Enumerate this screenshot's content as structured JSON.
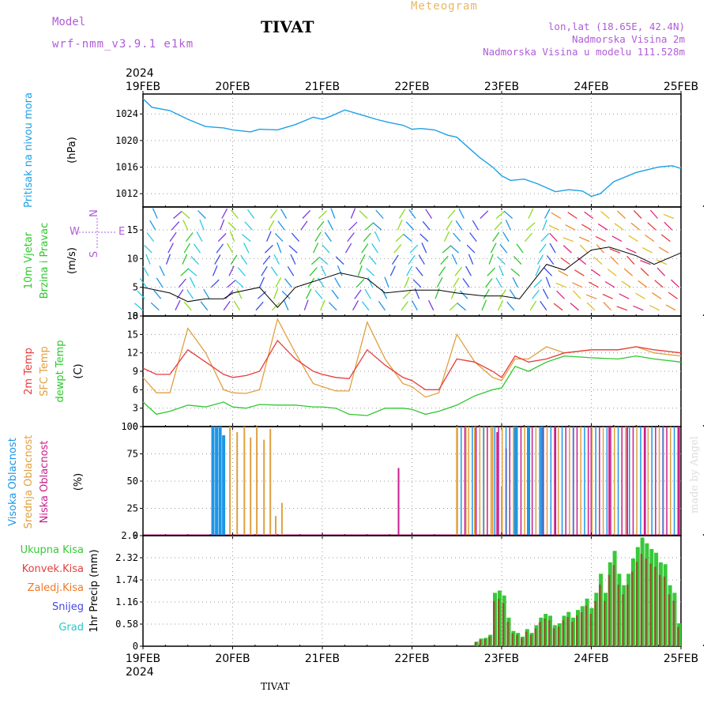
{
  "header": {
    "model_label": "Model",
    "model_version": "wrf-nmm_v3.9.1  e1km",
    "station": "TIVAT",
    "meteogram": "Meteogram",
    "lonlat": "lon,lat (18.65E, 42.4N)",
    "elevation": "Nadmorska Visina 2m",
    "model_elevation": "Nadmorska Visina u modelu 111.528m"
  },
  "footer": {
    "station": "TIVAT",
    "watermark": "made by Angel"
  },
  "colors": {
    "pressure": "#1ea0e6",
    "t2m": "#e83c3c",
    "sfc": "#e0a040",
    "dew": "#2ec82e",
    "high_cloud": "#1e96e6",
    "mid_cloud": "#e0a040",
    "low_cloud": "#c81e8c",
    "total_rain": "#38c838",
    "conv_rain": "#e04040",
    "frozen_rain": "#f07828",
    "snow": "#4646e6",
    "hail": "#28c8c8",
    "wind_axis_label": "#b05cd8"
  },
  "time_axis": {
    "year_top": "2024",
    "year_bottom": "2024",
    "dates": [
      "19FEB",
      "20FEB",
      "21FEB",
      "22FEB",
      "23FEB",
      "24FEB",
      "25FEB"
    ]
  },
  "chart_data": [
    {
      "type": "line",
      "name": "pressure",
      "ylabel_main": "Pritisak na nivou mora",
      "ylabel_unit": "(hPa)",
      "yticks": [
        "1012",
        "1016",
        "1020",
        "1024"
      ],
      "ylim": [
        1010,
        1027
      ],
      "x_days": [
        0,
        0.1,
        0.3,
        0.5,
        0.7,
        0.9,
        1.0,
        1.2,
        1.3,
        1.5,
        1.7,
        1.9,
        2.0,
        2.1,
        2.25,
        2.4,
        2.5,
        2.6,
        2.75,
        2.9,
        3.0,
        3.1,
        3.25,
        3.4,
        3.5,
        3.75,
        3.9,
        4.0,
        4.1,
        4.25,
        4.4,
        4.6,
        4.75,
        4.9,
        5.0,
        5.1,
        5.25,
        5.5,
        5.75,
        5.9,
        6.0
      ],
      "y": [
        1026.3,
        1025,
        1024.5,
        1023.2,
        1022.1,
        1021.9,
        1021.6,
        1021.3,
        1021.7,
        1021.6,
        1022.4,
        1023.5,
        1023.2,
        1023.7,
        1024.6,
        1024,
        1023.6,
        1023.2,
        1022.7,
        1022.3,
        1021.7,
        1021.8,
        1021.6,
        1020.8,
        1020.5,
        1017.5,
        1016,
        1014.7,
        1014,
        1014.2,
        1013.5,
        1012.3,
        1012.6,
        1012.4,
        1011.6,
        1012,
        1013.8,
        1015.2,
        1016,
        1016.2,
        1015.8
      ]
    },
    {
      "type": "barbs",
      "name": "wind",
      "ylabel_main": "10m Vjetar",
      "ylabel_sub": "Brzina i Pravac",
      "ylabel_unit": "(m/s)",
      "compass_labels": [
        "N",
        "W",
        "E",
        "S"
      ],
      "yticks": [
        "0",
        "5",
        "10",
        "15"
      ],
      "ylim": [
        0,
        19
      ],
      "speed_x_days": [
        0,
        0.3,
        0.5,
        0.7,
        0.9,
        1.0,
        1.3,
        1.5,
        1.7,
        2.0,
        2.2,
        2.5,
        2.7,
        3.0,
        3.3,
        3.5,
        3.8,
        4.0,
        4.2,
        4.5,
        4.7,
        5.0,
        5.2,
        5.5,
        5.7,
        6.0
      ],
      "speed": [
        5,
        4,
        2.5,
        3,
        3,
        4,
        5,
        1.5,
        5,
        6.5,
        7.5,
        6.5,
        4,
        4.5,
        4.5,
        4,
        3.5,
        3.5,
        3,
        9,
        8,
        11.5,
        12,
        10.5,
        9,
        11
      ]
    },
    {
      "type": "line",
      "name": "temperature",
      "ylabel_t2m": "2m Temp",
      "ylabel_sfc": "SFC Temp",
      "ylabel_dew": "dewpt Temp",
      "ylabel_unit": "(C)",
      "yticks": [
        "0",
        "3",
        "6",
        "9",
        "12",
        "15",
        "18"
      ],
      "ylim": [
        0,
        18
      ],
      "x_days": [
        0,
        0.15,
        0.3,
        0.5,
        0.7,
        0.9,
        1.0,
        1.15,
        1.3,
        1.5,
        1.7,
        1.9,
        2.0,
        2.15,
        2.3,
        2.5,
        2.7,
        2.9,
        3.0,
        3.15,
        3.3,
        3.5,
        3.7,
        3.9,
        4.0,
        4.15,
        4.3,
        4.5,
        4.7,
        5.0,
        5.3,
        5.5,
        5.7,
        6.0
      ],
      "t2m": [
        9.5,
        8.5,
        8.5,
        12.5,
        10.5,
        8.5,
        8,
        8.3,
        9,
        14,
        11,
        9,
        8.5,
        8,
        7.8,
        12.5,
        10,
        8,
        7.5,
        6,
        6,
        11,
        10.5,
        9,
        8,
        11.5,
        10.5,
        11,
        12,
        12.5,
        12.5,
        13,
        12.5,
        12
      ],
      "sfc": [
        8,
        5.5,
        5.5,
        16,
        12,
        6,
        5.5,
        5.4,
        6,
        17.5,
        12,
        7,
        6.5,
        5.8,
        5.8,
        17,
        11,
        7,
        6.5,
        4.8,
        5.5,
        15,
        10.5,
        8,
        7.5,
        11,
        11,
        13,
        12,
        12.5,
        12.5,
        13,
        12,
        11.5
      ],
      "dew": [
        4,
        2,
        2.5,
        3.5,
        3.2,
        4,
        3.2,
        3,
        3.6,
        3.5,
        3.5,
        3.2,
        3.2,
        3,
        2,
        1.8,
        3,
        3,
        2.8,
        2,
        2.5,
        3.5,
        5,
        6,
        6.3,
        9.8,
        9,
        10.5,
        11.5,
        11.2,
        11,
        11.5,
        11,
        10.5
      ]
    },
    {
      "type": "bar",
      "name": "clouds",
      "ylabel_high": "Visoka Oblacnost",
      "ylabel_mid": "Srednja Oblacnost",
      "ylabel_low": "Niska Oblacnost",
      "ylabel_unit": "(%)",
      "yticks": [
        "0",
        "25",
        "50",
        "75",
        "100"
      ],
      "ylim": [
        0,
        100
      ],
      "high": [
        {
          "x": 0.78,
          "v": 100
        },
        {
          "x": 0.82,
          "v": 100
        },
        {
          "x": 0.86,
          "v": 100
        },
        {
          "x": 0.9,
          "v": 92
        },
        {
          "x": 4.15,
          "v": 100
        },
        {
          "x": 4.3,
          "v": 100
        },
        {
          "x": 4.45,
          "v": 100
        }
      ],
      "mid": [
        {
          "x": 0.97,
          "v": 100
        },
        {
          "x": 1.05,
          "v": 95
        },
        {
          "x": 1.13,
          "v": 100
        },
        {
          "x": 1.2,
          "v": 90
        },
        {
          "x": 1.27,
          "v": 100
        },
        {
          "x": 1.35,
          "v": 88
        },
        {
          "x": 1.42,
          "v": 98
        },
        {
          "x": 1.48,
          "v": 18
        },
        {
          "x": 1.55,
          "v": 30
        },
        {
          "x": 3.5,
          "v": 100
        },
        {
          "x": 3.6,
          "v": 100
        },
        {
          "x": 3.7,
          "v": 100
        },
        {
          "x": 3.8,
          "v": 100
        },
        {
          "x": 3.9,
          "v": 100
        },
        {
          "x": 4.0,
          "v": 45
        }
      ],
      "low": [
        {
          "x": 2.85,
          "v": 62
        },
        {
          "x": 3.95,
          "v": 95
        },
        {
          "x": 4.05,
          "v": 80
        },
        {
          "x": 4.6,
          "v": 100
        },
        {
          "x": 4.8,
          "v": 100
        },
        {
          "x": 5.0,
          "v": 100
        },
        {
          "x": 5.2,
          "v": 100
        },
        {
          "x": 5.4,
          "v": 100
        },
        {
          "x": 5.6,
          "v": 100
        },
        {
          "x": 5.8,
          "v": 100
        },
        {
          "x": 5.98,
          "v": 100
        }
      ]
    },
    {
      "type": "bar",
      "name": "precipitation",
      "ylabel_total": "Ukupna Kisa",
      "ylabel_conv": "Konvek.Kisa",
      "ylabel_frozen": "Zaledj.Kisa",
      "ylabel_snow": "Snijeg",
      "ylabel_hail": "Grad",
      "ylabel_unit": "1hr Precip (mm)",
      "yticks": [
        "0",
        "0.58",
        "1.16",
        "1.74",
        "2.32",
        "2.9"
      ],
      "ylim": [
        0,
        2.9
      ],
      "total": [
        0.12,
        0.2,
        0.22,
        0.3,
        1.4,
        1.46,
        1.33,
        0.75,
        0.4,
        0.35,
        0.25,
        0.45,
        0.35,
        0.55,
        0.75,
        0.85,
        0.8,
        0.55,
        0.6,
        0.8,
        0.9,
        0.75,
        0.95,
        1.05,
        1.25,
        1.0,
        1.4,
        1.9,
        1.4,
        2.2,
        2.5,
        1.9,
        1.6,
        1.9,
        2.3,
        2.6,
        2.85,
        2.7,
        2.55,
        2.45,
        2.2,
        2.15,
        1.6,
        1.4,
        0.6
      ]
    }
  ]
}
